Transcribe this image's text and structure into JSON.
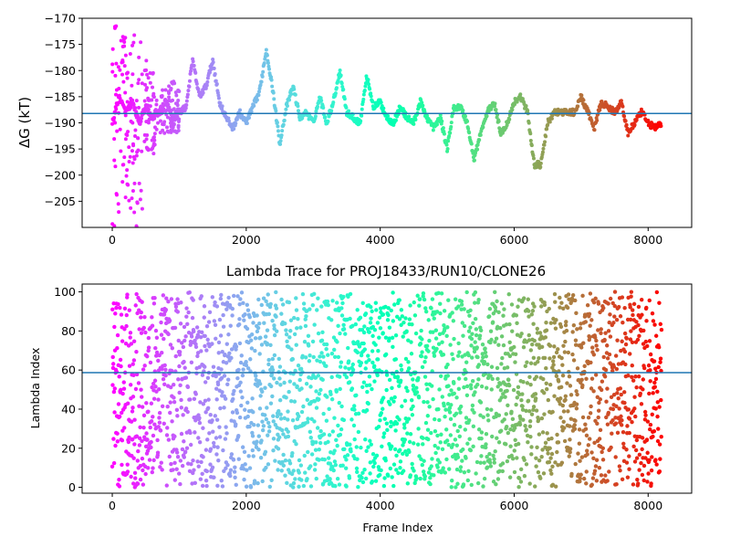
{
  "chart_data": [
    {
      "type": "scatter",
      "title": "",
      "xlabel": "",
      "ylabel": "ΔG (kT)",
      "xlim": [
        -450,
        8650
      ],
      "ylim": [
        -210,
        -170
      ],
      "xticks": [
        0,
        2000,
        4000,
        6000,
        8000
      ],
      "xtick_labels": [
        "0",
        "2000",
        "4000",
        "6000",
        "8000"
      ],
      "yticks": [
        -170,
        -175,
        -180,
        -185,
        -190,
        -195,
        -200,
        -205
      ],
      "ytick_labels": [
        "−170",
        "−175",
        "−180",
        "−185",
        "−190",
        "−195",
        "−200",
        "−205"
      ],
      "hline": -188.2,
      "hline_color": "#1f77b4",
      "colormap": "rainbow",
      "grid": false,
      "series": [
        {
          "x": [
            0,
            100,
            200,
            300,
            400,
            500,
            600,
            700,
            800,
            900,
            1000,
            1100,
            1200,
            1300,
            1400,
            1500,
            1600,
            1700,
            1800,
            1900,
            2000,
            2100,
            2200,
            2300,
            2400,
            2500,
            2600,
            2700,
            2800,
            2900,
            3000,
            3100,
            3200,
            3300,
            3400,
            3500,
            3600,
            3700,
            3800,
            3900,
            4000,
            4100,
            4200,
            4300,
            4400,
            4500,
            4600,
            4700,
            4800,
            4900,
            5000,
            5100,
            5200,
            5300,
            5400,
            5500,
            5600,
            5700,
            5800,
            5900,
            6000,
            6100,
            6200,
            6300,
            6400,
            6500,
            6600,
            6700,
            6800,
            6900,
            7000,
            7100,
            7200,
            7300,
            7400,
            7500,
            7600,
            7700,
            7800,
            7900,
            8000,
            8100,
            8200
          ],
          "y": [
            -190,
            -185,
            -188,
            -186,
            -190,
            -187,
            -189,
            -188,
            -186,
            -189,
            -188,
            -187,
            -178,
            -185,
            -183,
            -178,
            -186,
            -189,
            -191,
            -188,
            -190,
            -187,
            -184,
            -176,
            -184,
            -194,
            -187,
            -183,
            -189,
            -188,
            -190,
            -185,
            -190,
            -186,
            -180,
            -188,
            -189,
            -190,
            -181,
            -187,
            -186,
            -189,
            -190,
            -187,
            -189,
            -190,
            -186,
            -189,
            -191,
            -189,
            -195,
            -187,
            -187,
            -190,
            -197,
            -192,
            -188,
            -186,
            -192,
            -190,
            -186,
            -185,
            -188,
            -198,
            -198,
            -190,
            -188,
            -188,
            -188,
            -188,
            -185,
            -188,
            -191,
            -186,
            -187,
            -188,
            -186,
            -192,
            -190,
            -188,
            -190,
            -191,
            -190
          ],
          "scatter_bands": [
            {
              "x_range": [
                0,
                100
              ],
              "y_range": [
                -210,
                -170
              ]
            },
            {
              "x_range": [
                100,
                250
              ],
              "y_range": [
                -205,
                -171
              ]
            },
            {
              "x_range": [
                250,
                450
              ],
              "y_range": [
                -210,
                -172
              ]
            },
            {
              "x_range": [
                450,
                650
              ],
              "y_range": [
                -196,
                -178
              ]
            },
            {
              "x_range": [
                650,
                1000
              ],
              "y_range": [
                -192,
                -182
              ]
            }
          ]
        }
      ]
    },
    {
      "type": "scatter",
      "title": "Lambda Trace for PROJ18433/RUN10/CLONE26",
      "xlabel": "Frame Index",
      "ylabel": "Lambda Index",
      "xlim": [
        -450,
        8650
      ],
      "ylim": [
        -3,
        104
      ],
      "xticks": [
        0,
        2000,
        4000,
        6000,
        8000
      ],
      "xtick_labels": [
        "0",
        "2000",
        "4000",
        "6000",
        "8000"
      ],
      "yticks": [
        0,
        20,
        40,
        60,
        80,
        100
      ],
      "ytick_labels": [
        "0",
        "20",
        "40",
        "60",
        "80",
        "100"
      ],
      "hline": 58.7,
      "hline_color": "#1f77b4",
      "colormap": "rainbow",
      "grid": false,
      "series": [
        {
          "x_range": [
            0,
            8200
          ],
          "y_range": [
            0,
            100
          ],
          "point_count": 8200
        }
      ]
    }
  ]
}
